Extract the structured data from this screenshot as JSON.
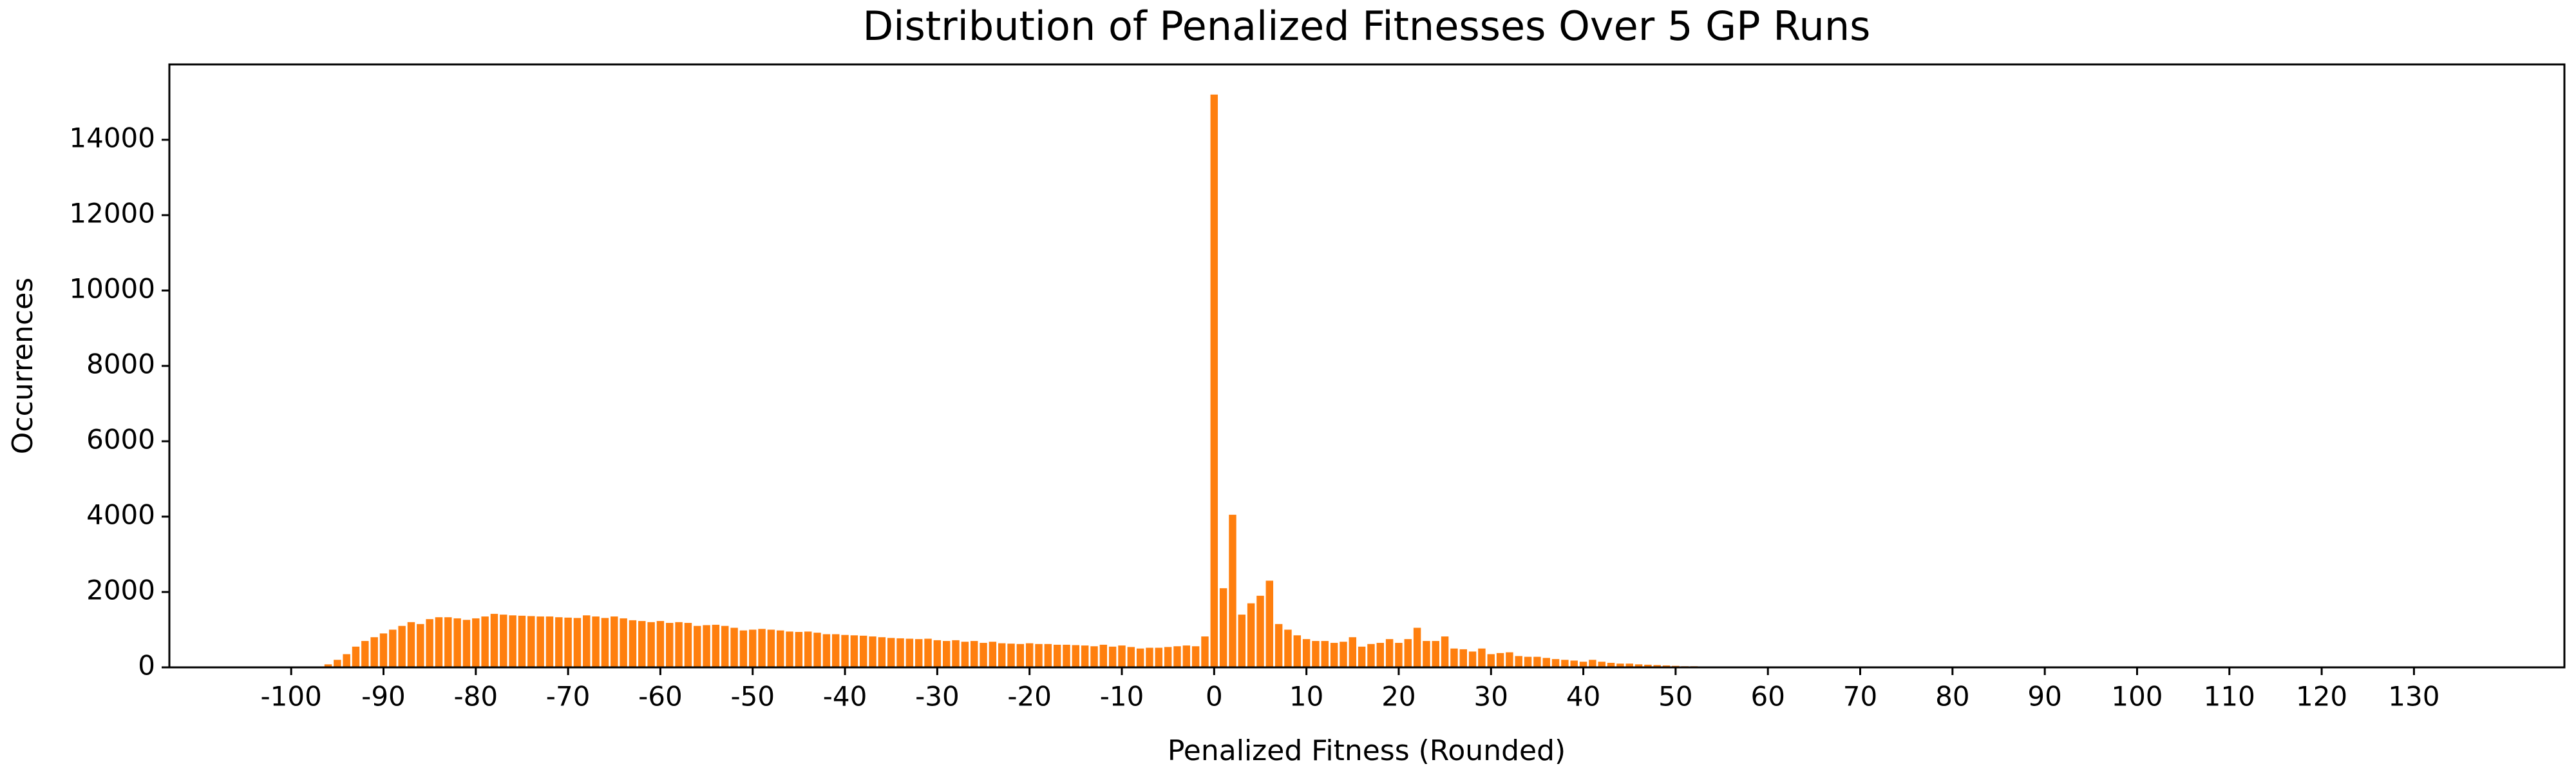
{
  "chart_data": {
    "type": "bar",
    "title": "Distribution of Penalized Fitnesses Over 5 GP Runs",
    "xlabel": "Penalized Fitness (Rounded)",
    "ylabel": "Occurrences",
    "color": "#ff7f0e",
    "x": [
      -97,
      -96,
      -95,
      -94,
      -93,
      -92,
      -91,
      -90,
      -89,
      -88,
      -87,
      -86,
      -85,
      -84,
      -83,
      -82,
      -81,
      -80,
      -79,
      -78,
      -77,
      -76,
      -75,
      -74,
      -73,
      -72,
      -71,
      -70,
      -69,
      -68,
      -67,
      -66,
      -65,
      -64,
      -63,
      -62,
      -61,
      -60,
      -59,
      -58,
      -57,
      -56,
      -55,
      -54,
      -53,
      -52,
      -51,
      -50,
      -49,
      -48,
      -47,
      -46,
      -45,
      -44,
      -43,
      -42,
      -41,
      -40,
      -39,
      -38,
      -37,
      -36,
      -35,
      -34,
      -33,
      -32,
      -31,
      -30,
      -29,
      -28,
      -27,
      -26,
      -25,
      -24,
      -23,
      -22,
      -21,
      -20,
      -19,
      -18,
      -17,
      -16,
      -15,
      -14,
      -13,
      -12,
      -11,
      -10,
      -9,
      -8,
      -7,
      -6,
      -5,
      -4,
      -3,
      -2,
      -1,
      0,
      1,
      2,
      3,
      4,
      5,
      6,
      7,
      8,
      9,
      10,
      11,
      12,
      13,
      14,
      15,
      16,
      17,
      18,
      19,
      20,
      21,
      22,
      23,
      24,
      25,
      26,
      27,
      28,
      29,
      30,
      31,
      32,
      33,
      34,
      35,
      36,
      37,
      38,
      39,
      40,
      41,
      42,
      43,
      44,
      45,
      46,
      47,
      48,
      49,
      50,
      51,
      52,
      53,
      54,
      55
    ],
    "values": [
      20,
      80,
      200,
      350,
      550,
      700,
      800,
      900,
      1000,
      1100,
      1200,
      1150,
      1280,
      1330,
      1330,
      1300,
      1260,
      1300,
      1350,
      1420,
      1400,
      1380,
      1370,
      1360,
      1350,
      1350,
      1330,
      1320,
      1310,
      1380,
      1350,
      1310,
      1350,
      1300,
      1250,
      1230,
      1200,
      1230,
      1180,
      1200,
      1180,
      1100,
      1120,
      1130,
      1100,
      1050,
      980,
      1000,
      1020,
      1000,
      980,
      950,
      940,
      950,
      920,
      880,
      880,
      860,
      850,
      840,
      820,
      800,
      780,
      770,
      760,
      750,
      760,
      720,
      700,
      720,
      680,
      700,
      650,
      680,
      640,
      630,
      620,
      640,
      620,
      620,
      600,
      600,
      590,
      580,
      560,
      600,
      550,
      580,
      540,
      500,
      520,
      520,
      540,
      560,
      580,
      560,
      820,
      15200,
      2100,
      4050,
      1400,
      1700,
      1900,
      2300,
      1150,
      1000,
      850,
      750,
      700,
      700,
      650,
      680,
      800,
      550,
      620,
      650,
      750,
      650,
      750,
      1050,
      700,
      700,
      820,
      500,
      480,
      420,
      500,
      350,
      380,
      400,
      300,
      280,
      280,
      250,
      220,
      200,
      180,
      150,
      200,
      150,
      120,
      100,
      100,
      80,
      70,
      60,
      50,
      40,
      30,
      30,
      20,
      20,
      10
    ],
    "xlim": [
      -113.2,
      146.3
    ],
    "ylim": [
      0,
      16000
    ],
    "xticks": [
      -100,
      -90,
      -80,
      -70,
      -60,
      -50,
      -40,
      -30,
      -20,
      -10,
      0,
      10,
      20,
      30,
      40,
      50,
      60,
      70,
      80,
      90,
      100,
      110,
      120,
      130
    ],
    "yticks": [
      0,
      2000,
      4000,
      6000,
      8000,
      10000,
      12000,
      14000
    ]
  }
}
